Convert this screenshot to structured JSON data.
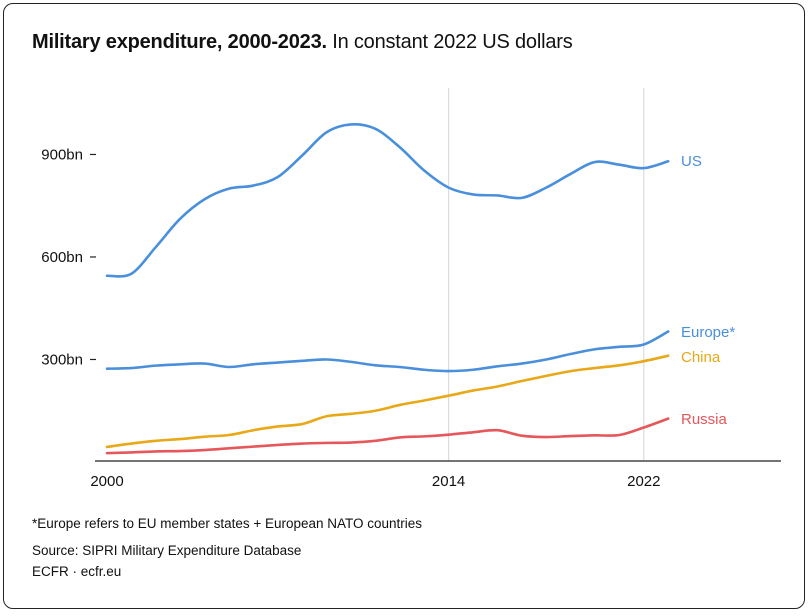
{
  "title_bold": "Military expenditure, 2000-2023.",
  "title_regular": "In constant 2022 US dollars",
  "chart_data": {
    "type": "line",
    "title": "Military expenditure, 2000-2023. In constant 2022 US dollars",
    "xlabel": "",
    "ylabel": "",
    "x": [
      2000,
      2001,
      2002,
      2003,
      2004,
      2005,
      2006,
      2007,
      2008,
      2009,
      2010,
      2011,
      2012,
      2013,
      2014,
      2015,
      2016,
      2017,
      2018,
      2019,
      2020,
      2021,
      2022,
      2023
    ],
    "xlim": [
      2000,
      2029
    ],
    "ylim": [
      0,
      1050
    ],
    "x_ticks": [
      {
        "value": 2000,
        "label": "2000"
      },
      {
        "value": 2014,
        "label": "2014"
      },
      {
        "value": 2022,
        "label": "2022"
      }
    ],
    "y_ticks": [
      {
        "value": 300,
        "label": "300bn"
      },
      {
        "value": 600,
        "label": "600bn"
      },
      {
        "value": 900,
        "label": "900bn"
      }
    ],
    "grid": "vertical lines at 2014 and 2022",
    "legend": "direct labels at line ends (right)",
    "series": [
      {
        "name": "US",
        "color": "#4a8fdb",
        "values": [
          545,
          551,
          629,
          712,
          769,
          800,
          809,
          834,
          897,
          965,
          988,
          975,
          921,
          853,
          803,
          783,
          780,
          773,
          803,
          843,
          878,
          870,
          860,
          880
        ]
      },
      {
        "name": "Europe*",
        "color": "#4a8fdb",
        "values": [
          273,
          275,
          282,
          286,
          288,
          278,
          286,
          291,
          296,
          300,
          293,
          283,
          278,
          270,
          266,
          270,
          280,
          288,
          300,
          316,
          330,
          337,
          344,
          382
        ]
      },
      {
        "name": "China",
        "color": "#e8a817",
        "values": [
          44,
          54,
          62,
          67,
          74,
          79,
          93,
          104,
          111,
          134,
          141,
          150,
          167,
          180,
          194,
          209,
          221,
          237,
          252,
          266,
          275,
          283,
          295,
          311
        ]
      },
      {
        "name": "Russia",
        "color": "#e5575a",
        "values": [
          26,
          28,
          31,
          32,
          35,
          40,
          45,
          50,
          54,
          56,
          57,
          62,
          72,
          75,
          80,
          87,
          93,
          77,
          73,
          76,
          78,
          79,
          101,
          127
        ]
      }
    ]
  },
  "footnote": "*Europe refers to EU member states + European NATO countries",
  "source": "Source: SIPRI Military Expenditure Database",
  "credit": "ECFR · ecfr.eu"
}
